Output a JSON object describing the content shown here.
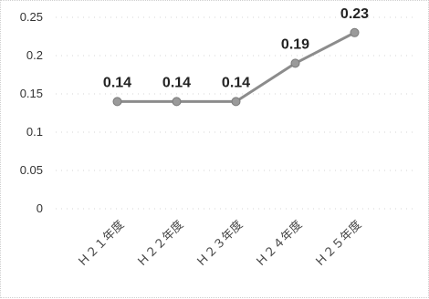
{
  "chart_data": {
    "type": "line",
    "title": "",
    "xlabel": "",
    "ylabel": "",
    "categories": [
      "Ｈ２１年度",
      "Ｈ２２年度",
      "Ｈ２３年度",
      "Ｈ２４年度",
      "Ｈ２５年度"
    ],
    "series": [
      {
        "values": [
          0.14,
          0.14,
          0.14,
          0.19,
          0.23
        ]
      }
    ],
    "data_labels": [
      "0.14",
      "0.14",
      "0.14",
      "0.19",
      "0.23"
    ],
    "yticks": [
      "0",
      "0.05",
      "0.1",
      "0.15",
      "0.2",
      "0.25"
    ],
    "ylim": [
      0,
      0.25
    ],
    "grid": true,
    "legend": "none",
    "colors": {
      "line": "#8c8c8c",
      "marker": "#9a9a9a",
      "marker_edge": "#7a7a7a"
    }
  }
}
